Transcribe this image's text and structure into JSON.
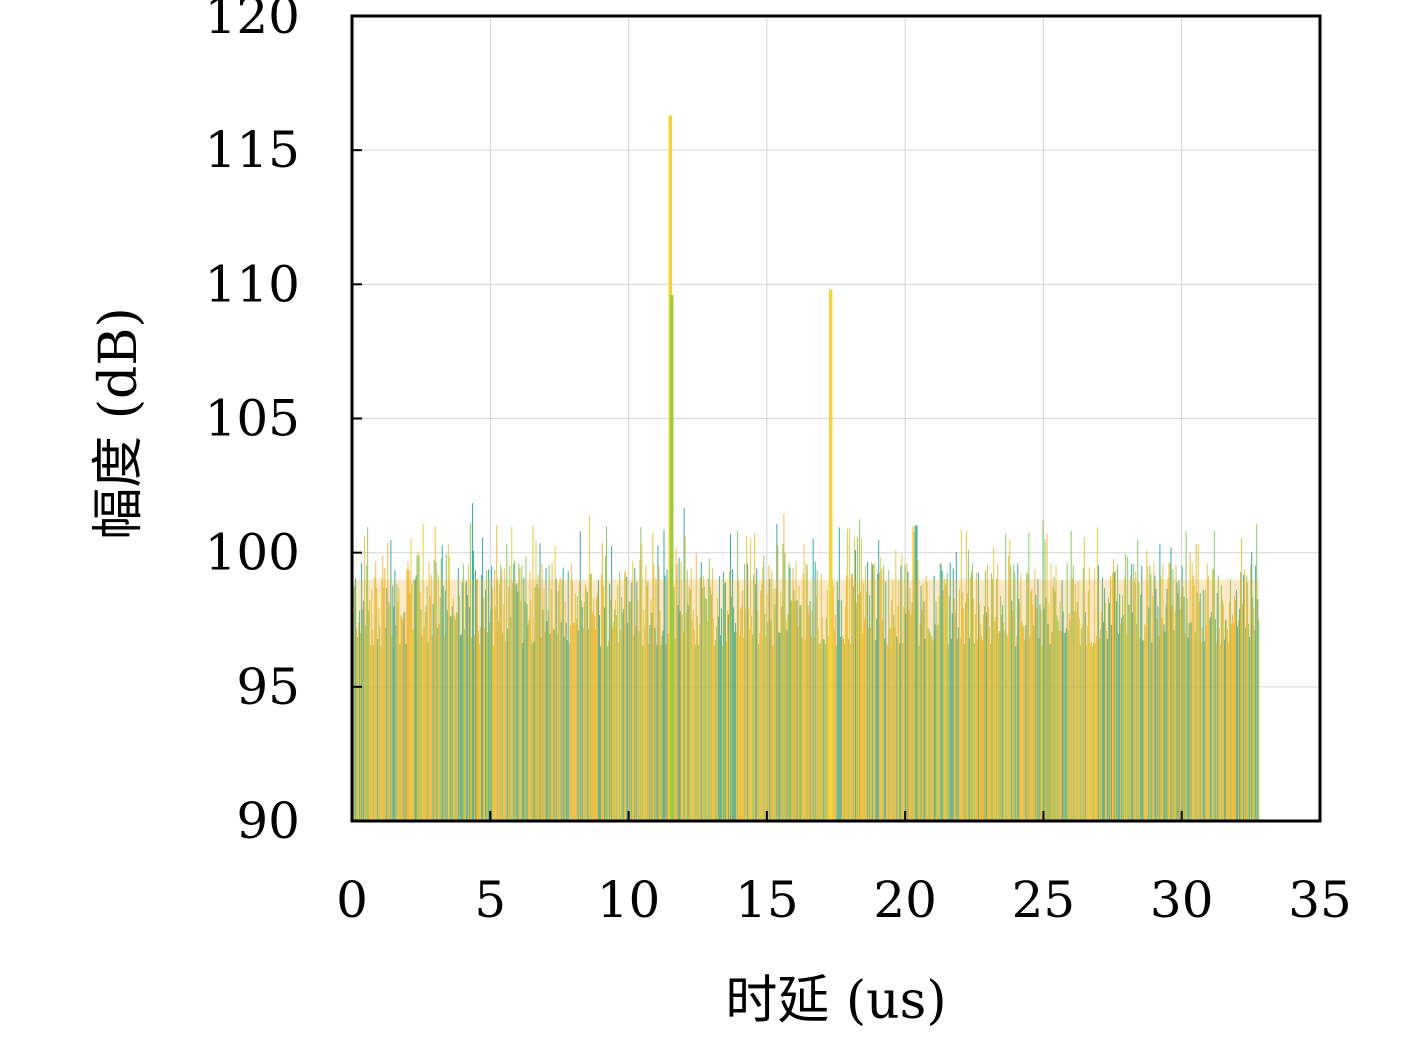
{
  "chart_data": {
    "type": "bar",
    "title": "",
    "xlabel": "时延 (us)",
    "ylabel": "幅度 (dB)",
    "xlim": [
      0,
      35
    ],
    "ylim": [
      90,
      120
    ],
    "xticks": [
      0,
      5,
      10,
      15,
      20,
      25,
      30,
      35
    ],
    "yticks": [
      90,
      95,
      100,
      105,
      110,
      115,
      120
    ],
    "grid": true,
    "legend": "none",
    "data_extent_x": [
      0,
      32.8
    ],
    "noise_floor_db": {
      "typical_max": 100,
      "min": 90
    },
    "peaks": [
      {
        "x": 11.5,
        "y": 116.3
      },
      {
        "x": 11.55,
        "y": 109.6
      },
      {
        "x": 17.3,
        "y": 109.8
      }
    ],
    "series_colors": [
      "#1fa39a",
      "#7cc45a",
      "#f0b429",
      "#e8c52e"
    ]
  }
}
